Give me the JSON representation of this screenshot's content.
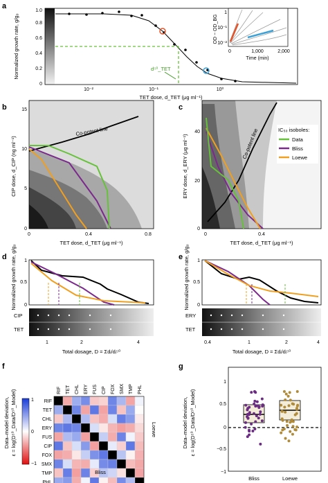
{
  "panel_labels": [
    "a",
    "b",
    "c",
    "d",
    "e",
    "f",
    "g"
  ],
  "panel_a": {
    "ylabel": "Normalized growth rate, g/g₀",
    "xlabel": "TET dose, d_TET (μg ml⁻¹)",
    "yticks": [
      "0",
      "0.2",
      "0.4",
      "0.6",
      "0.8",
      "1.0"
    ],
    "xticks": [
      "10⁻²",
      "10⁻¹",
      "10⁰"
    ],
    "annotation": "d⁵⁰_TET",
    "inset": {
      "ylabel": "OD − OD_BG",
      "xlabel": "Time (min)",
      "xticks": [
        "0",
        "1,000",
        "2,000"
      ],
      "yticks": [
        "10⁻²",
        "10⁻¹",
        "1"
      ]
    }
  },
  "panel_b": {
    "ylabel": "CIP dose, d_CIP (ng ml⁻¹)",
    "xlabel": "TET dose, d_TET (μg ml⁻¹)",
    "yticks": [
      "0",
      "5",
      "10",
      "15"
    ],
    "xticks": [
      "0",
      "0.4",
      "0.8"
    ],
    "line_label": "Co-potent line"
  },
  "panel_c": {
    "ylabel": "ERY dose, d_ERY (μg ml⁻¹)",
    "xlabel": "TET dose, d_TET (μg ml⁻¹)",
    "yticks": [
      "0",
      "20",
      "40"
    ],
    "xticks": [
      "0",
      "0.4"
    ],
    "line_label": "Co-potent line",
    "legend_title": "IC₅₀ isoboles:",
    "legend": [
      {
        "name": "Data",
        "color": "#66c23a"
      },
      {
        "name": "Bliss",
        "color": "#7b2a8c"
      },
      {
        "name": "Loewe",
        "color": "#f0a020"
      }
    ]
  },
  "panel_d": {
    "ylabel": "Normalized growth rate, g/g₀",
    "yticks": [
      "0",
      "0.5",
      "1"
    ],
    "xticks": [
      "1",
      "2",
      "4"
    ],
    "xlabel": "Total dosage, D = Σdᵢ/dᵢ⁵⁰",
    "rows": [
      "CIP",
      "TET"
    ]
  },
  "panel_e": {
    "ylabel": "Normalized growth rate, g/g₀",
    "yticks": [
      "0",
      "0.5",
      "1"
    ],
    "xticks": [
      "0.4",
      "1",
      "2",
      "4"
    ],
    "xlabel": "Total dosage, D = Σdᵢ/dᵢ⁵⁰",
    "rows": [
      "ERY",
      "TET"
    ]
  },
  "panel_f": {
    "ylabel_top": "Data–model deviation,",
    "ylabel_bot": "ε = log(D⁵⁰_Data/D⁵⁰_Model)",
    "drugs": [
      "RIF",
      "TET",
      "CHL",
      "ERY",
      "FUS",
      "CIP",
      "FOX",
      "SMX",
      "TMP",
      "PHL"
    ],
    "colorbar_ticks": [
      "1",
      "0",
      "−1"
    ],
    "corner_labels": {
      "lower": "Bliss",
      "upper": "Loewe"
    },
    "colors": {
      "pos": "#1a3dd8",
      "neg": "#e01010",
      "diag": "#000000"
    }
  },
  "panel_g": {
    "ylabel_top": "Data–model deviation,",
    "ylabel_bot": "ε = log(D⁵⁰_Data/D⁵⁰_Model)",
    "yticks": [
      "−1",
      "−0.5",
      "0",
      "0.5",
      "1"
    ],
    "categories": [
      "Bliss",
      "Loewe"
    ],
    "colors": {
      "Bliss": "#6a2d82",
      "Loewe": "#b08b3a"
    }
  }
}
